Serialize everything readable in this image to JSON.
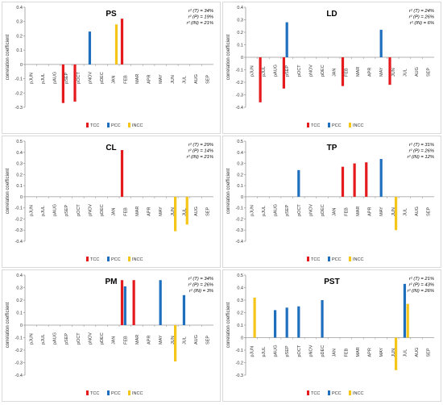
{
  "colors": {
    "TCC": "#e41a1c",
    "PCC": "#1f6fbf",
    "INCC": "#f5c518"
  },
  "chart_data": [
    {
      "type": "bar",
      "title": "PS",
      "categories": [
        "pJUN",
        "pJUL",
        "pAUG",
        "pSEP",
        "pOCT",
        "pNOV",
        "pDEC",
        "JAN",
        "FEB",
        "MAR",
        "APR",
        "MAY",
        "JUN",
        "JUL",
        "AUG",
        "SEP"
      ],
      "ylabel": "correlation coefficient",
      "ylim": [
        -0.3,
        0.4
      ],
      "ystep": 0.1,
      "stats": [
        "r² (T) = 34%",
        "r² (P) = 19%",
        "r² (IN) = 21%"
      ],
      "legend": [
        "TCC",
        "PCC",
        "INCC"
      ],
      "series": [
        {
          "name": "TCC",
          "values": [
            0,
            0,
            0,
            -0.27,
            -0.26,
            0,
            0,
            0,
            0.32,
            0,
            0,
            0,
            0,
            0,
            0,
            0
          ]
        },
        {
          "name": "PCC",
          "values": [
            0,
            0,
            0,
            0,
            0,
            0.23,
            0,
            0,
            0,
            0,
            0,
            0,
            0,
            0,
            0,
            0
          ]
        },
        {
          "name": "INCC",
          "values": [
            0,
            0,
            0,
            0,
            0,
            0,
            0,
            0.28,
            0,
            0,
            0,
            0,
            0,
            0,
            0,
            0
          ]
        }
      ]
    },
    {
      "type": "bar",
      "title": "LD",
      "categories": [
        "pJUN",
        "pJUL",
        "pAUG",
        "pSEP",
        "pOCT",
        "pNOV",
        "pDEC",
        "JAN",
        "FEB",
        "MAR",
        "APR",
        "MAY",
        "JUN",
        "JUL",
        "AUG",
        "SEP"
      ],
      "ylabel": "correlation coefficient",
      "ylim": [
        -0.4,
        0.4
      ],
      "ystep": 0.1,
      "stats": [
        "r² (T) = 24%",
        "r² (P) = 26%",
        "r² (IN) = 6%"
      ],
      "legend": [
        "TCC",
        "PCC",
        "INCC"
      ],
      "series": [
        {
          "name": "TCC",
          "values": [
            0,
            -0.36,
            0,
            -0.25,
            0,
            0,
            0,
            0,
            -0.23,
            0,
            0,
            0,
            -0.22,
            0,
            0,
            0
          ]
        },
        {
          "name": "PCC",
          "values": [
            0,
            0,
            0,
            0.28,
            0,
            0,
            0,
            0,
            0,
            0,
            0,
            0.22,
            0,
            0,
            0,
            0
          ]
        },
        {
          "name": "INCC",
          "values": [
            0,
            0,
            0,
            0,
            0,
            0,
            0,
            0,
            0,
            0,
            0,
            0,
            0,
            0,
            0,
            0
          ]
        }
      ]
    },
    {
      "type": "bar",
      "title": "CL",
      "categories": [
        "pJUN",
        "pJUL",
        "pAUG",
        "pSEP",
        "pOCT",
        "pNOV",
        "pDEC",
        "JAN",
        "FEB",
        "MAR",
        "APR",
        "MAY",
        "JUN",
        "JUL",
        "AUG",
        "SEP"
      ],
      "ylabel": "correlation coefficient",
      "ylim": [
        -0.4,
        0.5
      ],
      "ystep": 0.1,
      "stats": [
        "r² (T) = 29%",
        "r² (P) = 14%",
        "r² (IN) = 21%"
      ],
      "legend": [
        "TCC",
        "PCC",
        "INCC"
      ],
      "series": [
        {
          "name": "TCC",
          "values": [
            0,
            0,
            0,
            0,
            0,
            0,
            0,
            0,
            0.42,
            0,
            0,
            0,
            0,
            0,
            0,
            0
          ]
        },
        {
          "name": "PCC",
          "values": [
            0,
            0,
            0,
            0,
            0,
            0,
            0,
            0,
            0,
            0,
            0,
            0,
            0,
            0,
            0,
            0
          ]
        },
        {
          "name": "INCC",
          "values": [
            0,
            0,
            0,
            0,
            0,
            0,
            0,
            0,
            0,
            0,
            0,
            0,
            -0.31,
            -0.25,
            0,
            0
          ]
        }
      ]
    },
    {
      "type": "bar",
      "title": "TP",
      "categories": [
        "pJUN",
        "pJUL",
        "pAUG",
        "pSEP",
        "pOCT",
        "pNOV",
        "pDEC",
        "JAN",
        "FEB",
        "MAR",
        "APR",
        "MAY",
        "JUN",
        "JUL",
        "AUG",
        "SEP"
      ],
      "ylabel": "correlation coefficient",
      "ylim": [
        -0.4,
        0.5
      ],
      "ystep": 0.1,
      "stats": [
        "r² (T) = 31%",
        "r² (P) = 26%",
        "r² (IN) = 12%"
      ],
      "legend": [
        "TCC",
        "PCC",
        "INCC"
      ],
      "series": [
        {
          "name": "TCC",
          "values": [
            0,
            0,
            0,
            0,
            0,
            0,
            0,
            0,
            0.27,
            0.3,
            0.31,
            0,
            0,
            0,
            0,
            0
          ]
        },
        {
          "name": "PCC",
          "values": [
            0,
            0,
            0,
            0,
            0.24,
            0,
            0,
            0,
            0,
            0,
            0,
            0.34,
            0,
            0,
            0,
            0
          ]
        },
        {
          "name": "INCC",
          "values": [
            0,
            0,
            0,
            0,
            0,
            0,
            0,
            0,
            0,
            0,
            0,
            0,
            -0.3,
            0,
            0,
            0
          ]
        }
      ]
    },
    {
      "type": "bar",
      "title": "PM",
      "categories": [
        "pJUN",
        "pJUL",
        "pAUG",
        "pSEP",
        "pOCT",
        "pNOV",
        "pDEC",
        "JAN",
        "FEB",
        "MAR",
        "APR",
        "MAY",
        "JUN",
        "JUL",
        "AUG",
        "SEP"
      ],
      "ylabel": "correlation coefficient",
      "ylim": [
        -0.4,
        0.4
      ],
      "ystep": 0.1,
      "stats": [
        "r² (T) = 34%",
        "r² (P) = 26%",
        "r² (IN) = 3%"
      ],
      "legend": [
        "TCC",
        "PCC",
        "INCC"
      ],
      "series": [
        {
          "name": "TCC",
          "values": [
            0,
            0,
            0,
            0,
            0,
            0,
            0,
            0,
            0.36,
            0.36,
            0,
            0,
            0,
            0,
            0,
            0
          ]
        },
        {
          "name": "PCC",
          "values": [
            0,
            0,
            0,
            0,
            0,
            0,
            0,
            0,
            0.31,
            0,
            0,
            0.36,
            0,
            0.24,
            0,
            0
          ]
        },
        {
          "name": "INCC",
          "values": [
            0,
            0,
            0,
            0,
            0,
            0,
            0,
            0,
            0,
            0,
            0,
            0,
            -0.29,
            0,
            0,
            0
          ]
        }
      ]
    },
    {
      "type": "bar",
      "title": "PST",
      "categories": [
        "pJUN",
        "pJUL",
        "pAUG",
        "pSEP",
        "pOCT",
        "pNOV",
        "pDEC",
        "JAN",
        "FEB",
        "MAR",
        "APR",
        "MAY",
        "JUN",
        "JUL",
        "AUG",
        "SEP"
      ],
      "ylabel": "correlation coefficient",
      "ylim": [
        -0.3,
        0.5
      ],
      "ystep": 0.1,
      "stats": [
        "r² (T) = 21%",
        "r² (P) = 43%",
        "r² (IN) = 26%"
      ],
      "legend": [
        "TCC",
        "PCC",
        "INCC"
      ],
      "series": [
        {
          "name": "TCC",
          "values": [
            0,
            0,
            0,
            0,
            0,
            0,
            0,
            0,
            0,
            0,
            0,
            0,
            0,
            0,
            0,
            0
          ]
        },
        {
          "name": "PCC",
          "values": [
            0,
            0,
            0.22,
            0.24,
            0.25,
            0,
            0.3,
            0,
            0,
            0,
            0,
            0,
            0,
            0.43,
            0,
            0
          ]
        },
        {
          "name": "INCC",
          "values": [
            0.32,
            0,
            0,
            0,
            0,
            0,
            0,
            0,
            0,
            0,
            0,
            0,
            -0.26,
            0.27,
            0,
            0
          ]
        }
      ]
    }
  ]
}
